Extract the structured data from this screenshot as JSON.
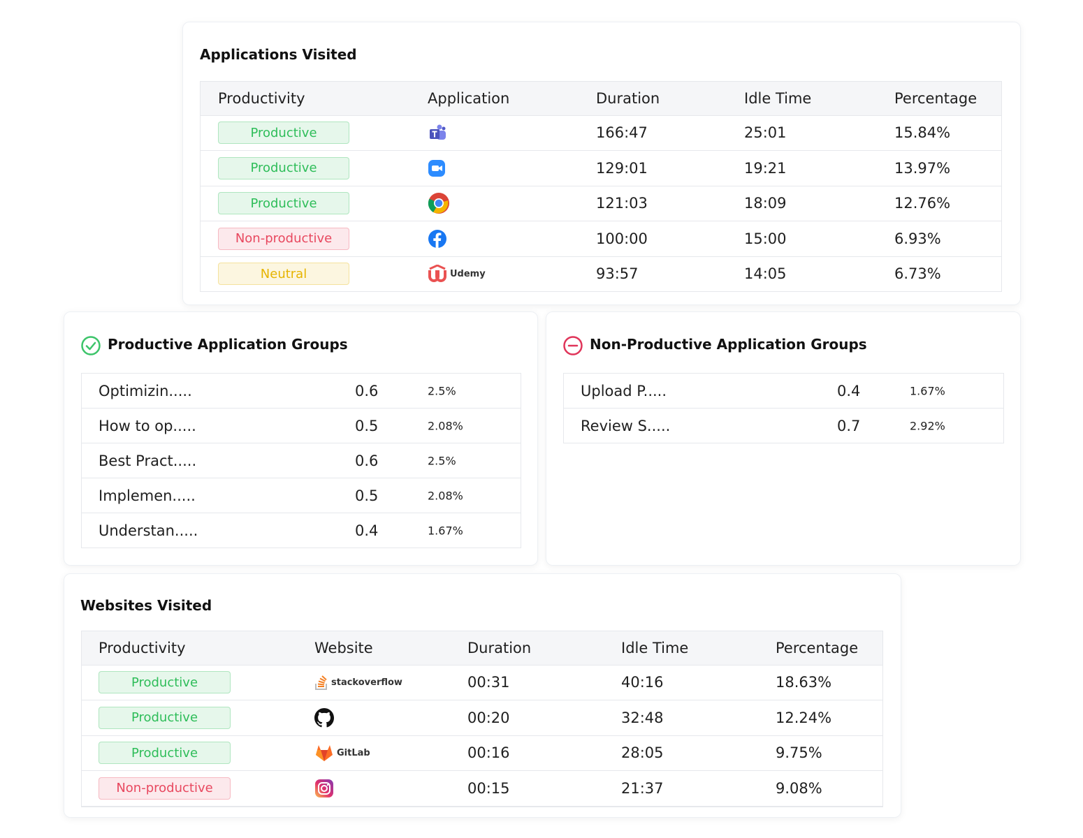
{
  "applications_visited": {
    "title": "Applications Visited",
    "columns": [
      "Productivity",
      "Application",
      "Duration",
      "Idle Time",
      "Percentage"
    ],
    "rows": [
      {
        "productivity": "Productive",
        "productivity_color": "#2ebd59",
        "duration": "166:47",
        "idle_time": "25:01",
        "percentage": "15.84%"
      },
      {
        "productivity": "Productive",
        "productivity_color": "#2ebd59",
        "duration": "129:01",
        "idle_time": "19:21",
        "percentage": "13.97%"
      },
      {
        "productivity": "Productive",
        "productivity_color": "#2ebd59",
        "duration": "121:03",
        "idle_time": "18:09",
        "percentage": "12.76%"
      },
      {
        "productivity": "Non-productive",
        "productivity_color": "#e8485f",
        "duration": "100:00",
        "idle_time": "15:00",
        "percentage": "6.93%"
      },
      {
        "productivity": "Neutral",
        "productivity_color": "#e6b400",
        "logo_text": "Udemy",
        "duration": "93:57",
        "idle_time": "14:05",
        "percentage": "6.73%"
      }
    ]
  },
  "productive_groups": {
    "title": "Productive Application Groups",
    "rows": [
      {
        "name": "Optimizin.....",
        "value": "0.6",
        "percentage": "2.5%"
      },
      {
        "name": "How to op.....",
        "value": "0.5",
        "percentage": "2.08%"
      },
      {
        "name": "Best Pract.....",
        "value": "0.6",
        "percentage": "2.5%"
      },
      {
        "name": "Implemen.....",
        "value": "0.5",
        "percentage": "2.08%"
      },
      {
        "name": "Understan.....",
        "value": "0.4",
        "percentage": "1.67%"
      }
    ]
  },
  "non_productive_groups": {
    "title": "Non-Productive Application Groups",
    "rows": [
      {
        "name": "Upload P.....",
        "value": "0.4",
        "percentage": "1.67%"
      },
      {
        "name": "Review S.....",
        "value": "0.7",
        "percentage": "2.92%"
      }
    ]
  },
  "websites_visited": {
    "title": "Websites Visited",
    "columns": [
      "Productivity",
      "Website",
      "Duration",
      "Idle Time",
      "Percentage"
    ],
    "rows": [
      {
        "productivity": "Productive",
        "productivity_color": "#2ebd59",
        "logo_text": "stackoverflow",
        "duration": "00:31",
        "idle_time": "40:16",
        "percentage": "18.63%"
      },
      {
        "productivity": "Productive",
        "productivity_color": "#2ebd59",
        "duration": "00:20",
        "idle_time": "32:48",
        "percentage": "12.24%"
      },
      {
        "productivity": "Productive",
        "productivity_color": "#2ebd59",
        "logo_text": "GitLab",
        "duration": "00:16",
        "idle_time": "28:05",
        "percentage": "9.75%"
      },
      {
        "productivity": "Non-productive",
        "productivity_color": "#e8485f",
        "duration": "00:15",
        "idle_time": "21:37",
        "percentage": "9.08%"
      }
    ]
  }
}
